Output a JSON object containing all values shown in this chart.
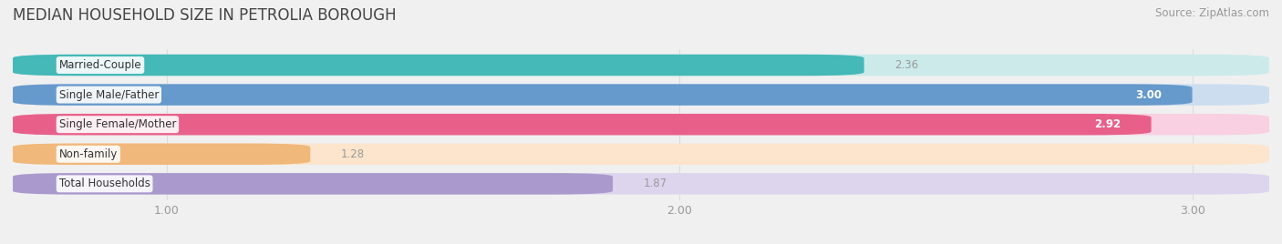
{
  "title": "MEDIAN HOUSEHOLD SIZE IN PETROLIA BOROUGH",
  "source": "Source: ZipAtlas.com",
  "categories": [
    "Married-Couple",
    "Single Male/Father",
    "Single Female/Mother",
    "Non-family",
    "Total Households"
  ],
  "values": [
    2.36,
    3.0,
    2.92,
    1.28,
    1.87
  ],
  "bar_colors": [
    "#45b8b8",
    "#6699cc",
    "#e8608a",
    "#f0b87a",
    "#aa99cc"
  ],
  "bar_bg_colors": [
    "#cceaea",
    "#ccddf0",
    "#f8d0e2",
    "#fce5cc",
    "#ddd5ee"
  ],
  "xlim_min": 0.7,
  "xlim_max": 3.15,
  "xticks": [
    1.0,
    2.0,
    3.0
  ],
  "xtick_labels": [
    "1.00",
    "2.00",
    "3.00"
  ],
  "label_fontsize": 8.5,
  "value_fontsize": 8.5,
  "title_fontsize": 12,
  "source_fontsize": 8.5,
  "background_color": "#f0f0f0",
  "grid_color": "#dddddd",
  "inside_value_threshold": 2.5,
  "value_inside_color": "#ffffff",
  "value_outside_color": "#999999"
}
